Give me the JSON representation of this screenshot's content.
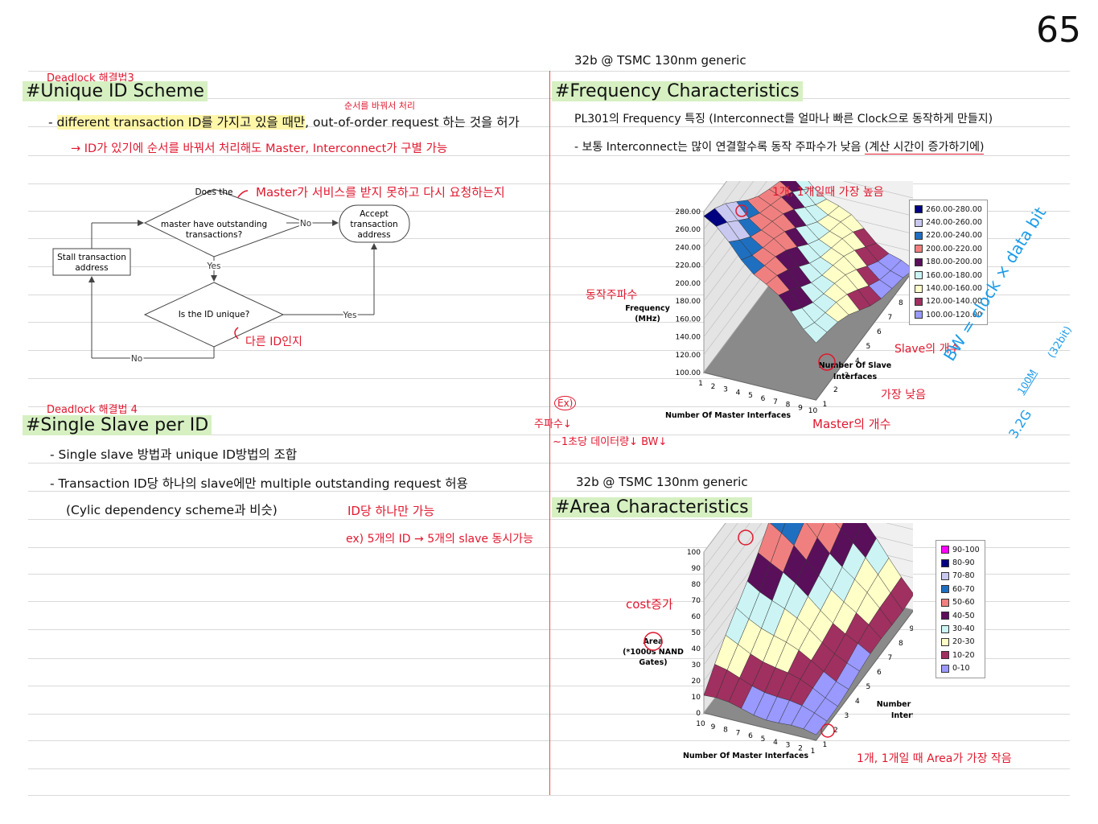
{
  "page_number": "65",
  "left": {
    "s1": {
      "tag": "Deadlock 해결법3",
      "heading": "#Unique ID Scheme",
      "note_top": "순서를 바꿔서 처리",
      "line1_dash": "- ",
      "line1_hl": "different transaction ID를 가지고 있을 때만",
      "line1_rest": ", out-of-order request 하는 것을 허가",
      "line2": "→ ID가 있기에 순서를 바꿔서 처리해도 Master, Interconnect가 구별 가능"
    },
    "flow": {
      "q1": [
        "Does the",
        "master have outstanding",
        "transactions?"
      ],
      "no1": "No",
      "accept": [
        "Accept",
        "transaction",
        "address"
      ],
      "stall": [
        "Stall transaction",
        "address"
      ],
      "yes1": "Yes",
      "q2": "Is the ID unique?",
      "yes2": "Yes",
      "no2": "No",
      "note_master": "Master가 서비스를 받지 못하고 다시 요청하는지",
      "note_id": "다른 ID인지"
    },
    "s2": {
      "tag": "Deadlock 해결법 4",
      "heading": "#Single Slave per ID",
      "l1": "- Single slave 방법과 unique ID방법의 조합",
      "l2": "- Transaction ID당 하나의 slave에만 multiple outstanding request 허용",
      "l3": "(Cylic dependency scheme과 비슷)",
      "n1": "ID당 하나만 가능",
      "n2": "ex) 5개의 ID → 5개의 slave 동시가능"
    }
  },
  "right": {
    "freq": {
      "subtitle": "32b @ TSMC 130nm generic",
      "heading": "#Frequency Characteristics",
      "l1": "PL301의 Frequency 특징 (Interconnect를 얼마나 빠른 Clock으로 동작하게 만들지)",
      "l2": "- 보통 Interconnect는 많이 연결할수록 동작 주파수가 낮음",
      "l2_red": "(계산 시간이 증가하기에)",
      "note_high": "1개, 1개일때 가장 높음",
      "note_op": "동작주파수",
      "note_slave": "Slave의 개수",
      "note_low": "가장 낮음",
      "note_master": "Master의 개수",
      "note_ex": "Ex)",
      "note_fdown": "주파수↓",
      "note_bw": "~1초당 데이터량↓ BW↓",
      "bw_formula": "BW = clock × data bit",
      "bw_sub1": "(32bit)",
      "bw_sub2": "100M",
      "bw_sub3": "3.2G"
    },
    "area": {
      "subtitle": "32b @ TSMC 130nm generic",
      "heading": "#Area Characteristics",
      "note_cost": "cost증가",
      "note_low": "1개, 1개일 때 Area가 가장 작음"
    }
  },
  "chart_data": [
    {
      "type": "surface",
      "title": "",
      "zlabel": "Frequency (MHz)",
      "xlabel": "Number Of Master Interfaces",
      "ylabel": "Number Of Slave Interfaces",
      "x": [
        1,
        2,
        3,
        4,
        5,
        6,
        7,
        8,
        9,
        10
      ],
      "y": [
        1,
        2,
        3,
        4,
        5,
        6,
        7,
        8,
        9,
        10
      ],
      "zlim": [
        100,
        280
      ],
      "z_ticks": [
        "100.00",
        "120.00",
        "140.00",
        "160.00",
        "180.00",
        "200.00",
        "220.00",
        "240.00",
        "260.00",
        "280.00"
      ],
      "legend": [
        "260.00-280.00",
        "240.00-260.00",
        "220.00-240.00",
        "200.00-220.00",
        "180.00-200.00",
        "160.00-180.00",
        "140.00-160.00",
        "120.00-140.00",
        "100.00-120.00"
      ],
      "legend_colors": [
        "#000080",
        "#c8c8f0",
        "#1f6fc0",
        "#f08080",
        "#5a0f5a",
        "#ccf4f4",
        "#ffffc8",
        "#a03060",
        "#9999ff"
      ]
    },
    {
      "type": "surface",
      "title": "",
      "zlabel": "Area (*1000s NAND Gates)",
      "xlabel": "Number Of Master Interfaces",
      "ylabel": "Number Of Slave Interfaces",
      "x": [
        10,
        9,
        8,
        7,
        6,
        5,
        4,
        3,
        2,
        1
      ],
      "y": [
        1,
        2,
        3,
        4,
        5,
        6,
        7,
        8,
        9,
        10
      ],
      "zlim": [
        0,
        100
      ],
      "z_ticks": [
        "0",
        "10",
        "20",
        "30",
        "40",
        "50",
        "60",
        "70",
        "80",
        "90",
        "100"
      ],
      "legend": [
        "90-100",
        "80-90",
        "70-80",
        "60-70",
        "50-60",
        "40-50",
        "30-40",
        "20-30",
        "10-20",
        "0-10"
      ],
      "legend_colors": [
        "#ff00ff",
        "#000080",
        "#c8c8f0",
        "#1f6fc0",
        "#f08080",
        "#5a0f5a",
        "#ccf4f4",
        "#ffffc8",
        "#a03060",
        "#9999ff"
      ]
    }
  ]
}
